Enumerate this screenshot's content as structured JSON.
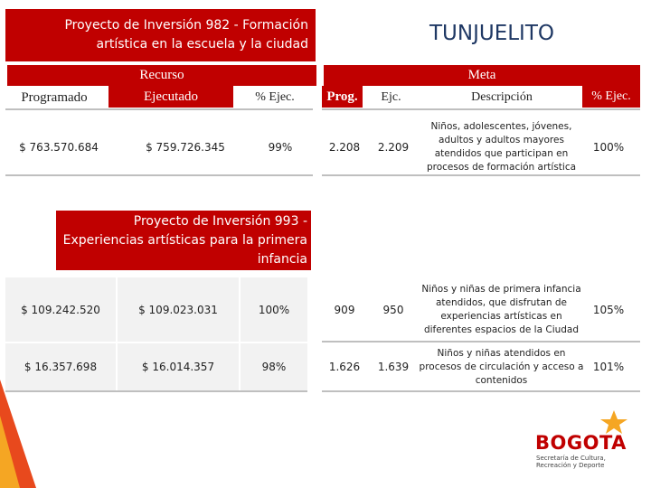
{
  "title": "TUNJUELITO",
  "project_1": {
    "title": "Proyecto de Inversión 982 - Formación artística en la escuela y la ciudad"
  },
  "headers": {
    "recurso": "Recurso",
    "meta": "Meta",
    "programado": "Programado",
    "ejecutado": "Ejecutado",
    "recurso_pct": "% Ejec.",
    "prog": "Prog.",
    "ejc": "Ejc.",
    "descripcion": "Descripción",
    "meta_pct": "% Ejec."
  },
  "table_1": {
    "rows": [
      [
        "$ 763.570.684",
        "$ 759.726.345",
        "99%",
        "2.208",
        "2.209",
        "Niños, adolescentes, jóvenes, adultos y adultos mayores atendidos que participan en procesos de formación artística",
        "100%"
      ]
    ]
  },
  "project_2": {
    "title": "Proyecto de Inversión 993 - Experiencias artísticas para la primera infancia"
  },
  "table_2": {
    "rows": [
      [
        "$ 109.242.520",
        "$ 109.023.031",
        "100%",
        "909",
        "950",
        "Niños y niñas de primera infancia atendidos, que disfrutan de experiencias artísticas en diferentes espacios de la Ciudad",
        "105%"
      ],
      [
        "$ 16.357.698",
        "$ 16.014.357",
        "98%",
        "1.626",
        "1.639",
        "Niños y niñas atendidos en procesos de circulación y acceso a contenidos",
        "101%"
      ]
    ]
  },
  "logo": {
    "name": "BOGOTA",
    "subtitle": "Secretaría de Cultura, Recreación y Deporte"
  }
}
